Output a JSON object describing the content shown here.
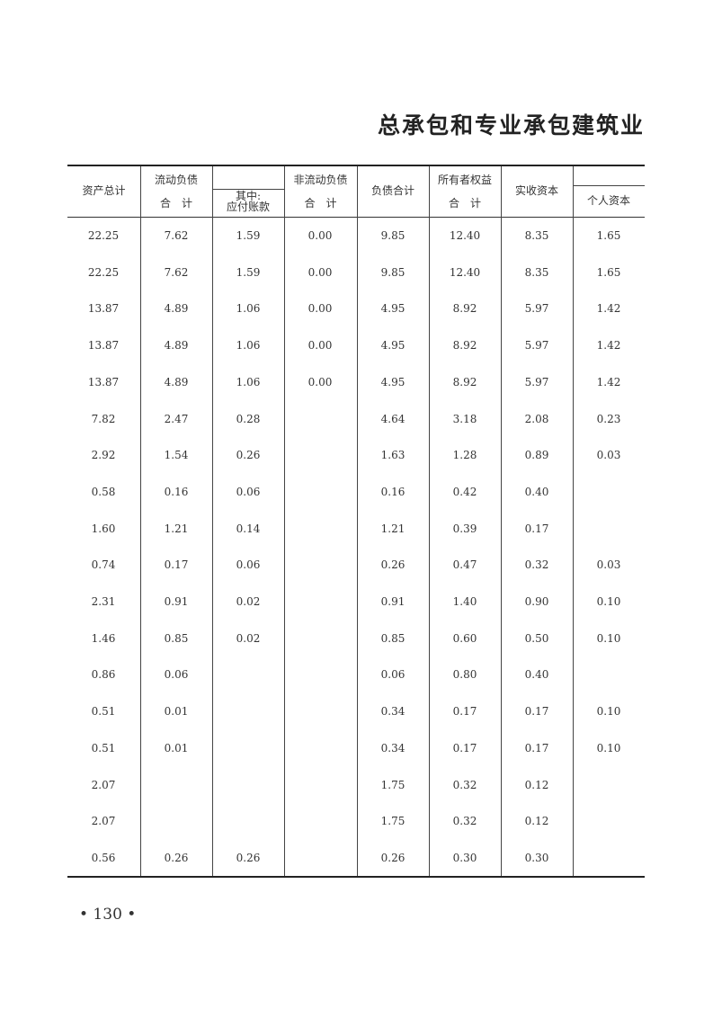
{
  "title": "总承包和专业承包建筑业",
  "headers": {
    "total_assets": "资产总计",
    "current_liab_top": "流动负债",
    "current_liab_bottom": "合　计",
    "payables": "其中:\n应付账款",
    "noncurrent_liab_top": "非流动负债",
    "noncurrent_liab_bottom": "合　计",
    "total_liab": "负债合计",
    "equity_top": "所有者权益",
    "equity_bottom": "合　计",
    "paid_in_capital": "实收资本",
    "personal_capital": "个人资本"
  },
  "rows": [
    [
      "22.25",
      "7.62",
      "1.59",
      "0.00",
      "9.85",
      "12.40",
      "8.35",
      "1.65"
    ],
    [
      "22.25",
      "7.62",
      "1.59",
      "0.00",
      "9.85",
      "12.40",
      "8.35",
      "1.65"
    ],
    [
      "13.87",
      "4.89",
      "1.06",
      "0.00",
      "4.95",
      "8.92",
      "5.97",
      "1.42"
    ],
    [
      "13.87",
      "4.89",
      "1.06",
      "0.00",
      "4.95",
      "8.92",
      "5.97",
      "1.42"
    ],
    [
      "13.87",
      "4.89",
      "1.06",
      "0.00",
      "4.95",
      "8.92",
      "5.97",
      "1.42"
    ],
    [
      "7.82",
      "2.47",
      "0.28",
      "",
      "4.64",
      "3.18",
      "2.08",
      "0.23"
    ],
    [
      "2.92",
      "1.54",
      "0.26",
      "",
      "1.63",
      "1.28",
      "0.89",
      "0.03"
    ],
    [
      "0.58",
      "0.16",
      "0.06",
      "",
      "0.16",
      "0.42",
      "0.40",
      ""
    ],
    [
      "1.60",
      "1.21",
      "0.14",
      "",
      "1.21",
      "0.39",
      "0.17",
      ""
    ],
    [
      "0.74",
      "0.17",
      "0.06",
      "",
      "0.26",
      "0.47",
      "0.32",
      "0.03"
    ],
    [
      "2.31",
      "0.91",
      "0.02",
      "",
      "0.91",
      "1.40",
      "0.90",
      "0.10"
    ],
    [
      "1.46",
      "0.85",
      "0.02",
      "",
      "0.85",
      "0.60",
      "0.50",
      "0.10"
    ],
    [
      "0.86",
      "0.06",
      "",
      "",
      "0.06",
      "0.80",
      "0.40",
      ""
    ],
    [
      "0.51",
      "0.01",
      "",
      "",
      "0.34",
      "0.17",
      "0.17",
      "0.10"
    ],
    [
      "0.51",
      "0.01",
      "",
      "",
      "0.34",
      "0.17",
      "0.17",
      "0.10"
    ],
    [
      "2.07",
      "",
      "",
      "",
      "1.75",
      "0.32",
      "0.12",
      ""
    ],
    [
      "2.07",
      "",
      "",
      "",
      "1.75",
      "0.32",
      "0.12",
      ""
    ],
    [
      "0.56",
      "0.26",
      "0.26",
      "",
      "0.26",
      "0.30",
      "0.30",
      ""
    ]
  ],
  "page_number": "• 130 •"
}
